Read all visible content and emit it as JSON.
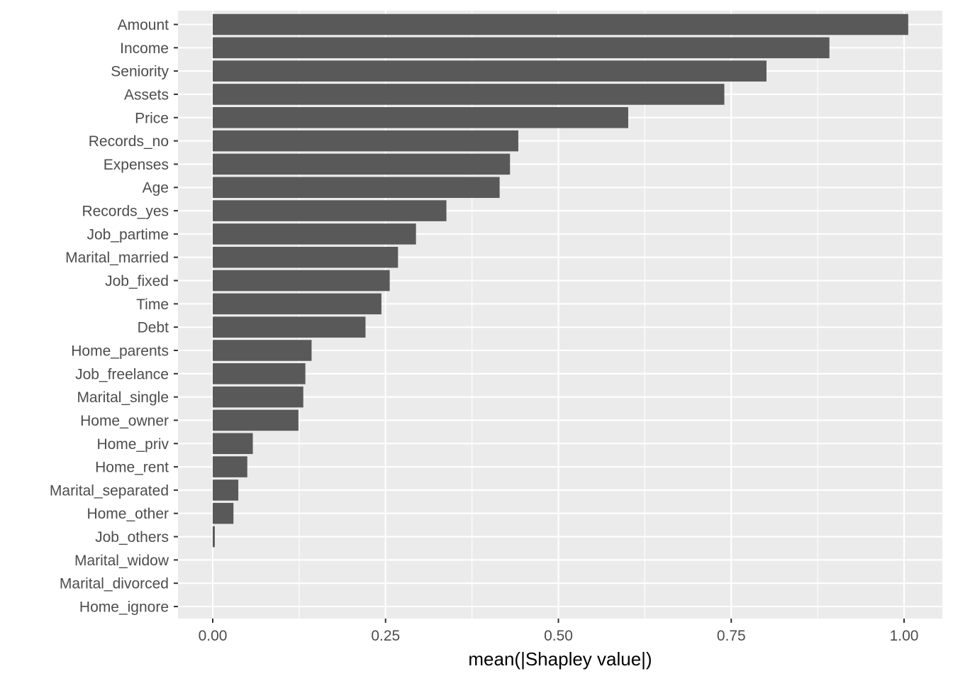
{
  "chart_data": {
    "type": "bar",
    "orientation": "horizontal",
    "title": "",
    "xlabel": "mean(|Shapley value|)",
    "ylabel": "",
    "xlim": [
      -0.1,
      1.08
    ],
    "xticks": [
      0.0,
      0.25,
      0.5,
      0.75,
      1.0
    ],
    "xtick_labels": [
      "0.00",
      "0.25",
      "0.50",
      "0.75",
      "1.00"
    ],
    "grid": true,
    "colors": {
      "bar": "#595959",
      "panel": "#ebebeb",
      "grid": "#ffffff"
    },
    "categories": [
      "Amount",
      "Income",
      "Seniority",
      "Assets",
      "Price",
      "Records_no",
      "Expenses",
      "Age",
      "Records_yes",
      "Job_partime",
      "Marital_married",
      "Job_fixed",
      "Time",
      "Debt",
      "Home_parents",
      "Job_freelance",
      "Marital_single",
      "Home_owner",
      "Home_priv",
      "Home_rent",
      "Marital_separated",
      "Home_other",
      "Job_others",
      "Marital_widow",
      "Marital_divorced",
      "Home_ignore"
    ],
    "values": [
      1.006,
      0.892,
      0.801,
      0.74,
      0.601,
      0.442,
      0.43,
      0.415,
      0.338,
      0.294,
      0.268,
      0.256,
      0.244,
      0.221,
      0.143,
      0.134,
      0.131,
      0.124,
      0.058,
      0.05,
      0.037,
      0.03,
      0.003,
      0.0,
      0.0,
      0.0
    ]
  }
}
